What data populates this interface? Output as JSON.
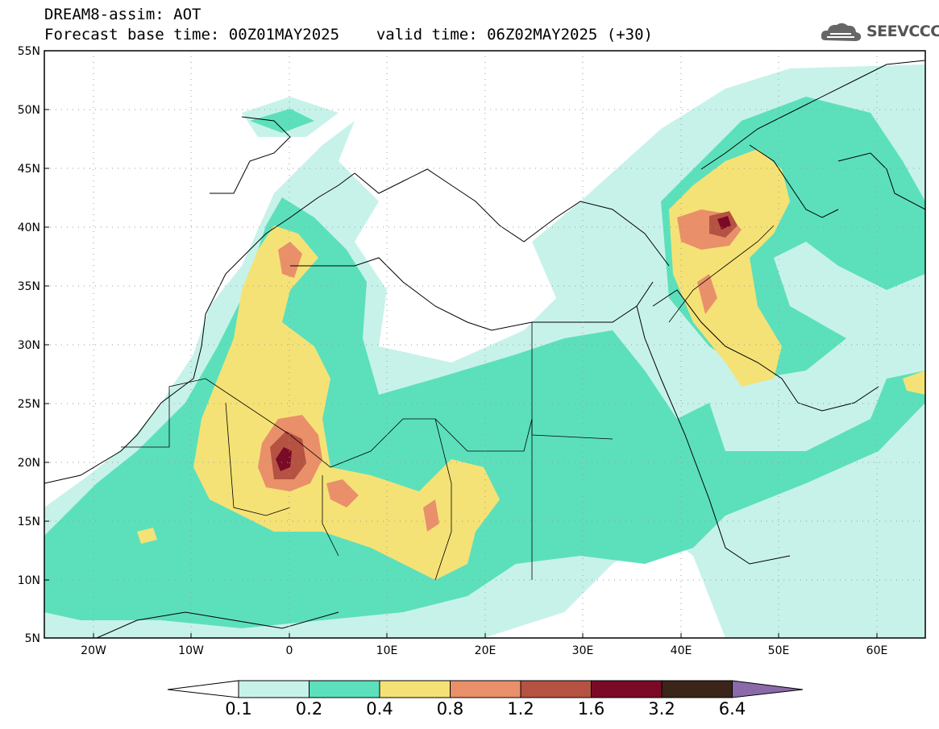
{
  "header": {
    "title": "DREAM8-assim: AOT",
    "base_time_label": "Forecast base time: 00Z01MAY2025",
    "valid_time_label": "valid time: 06Z02MAY2025 (+30)",
    "logo_text": "SEEVCCC"
  },
  "axes": {
    "lat_ticks": [
      "55N",
      "50N",
      "45N",
      "40N",
      "35N",
      "30N",
      "25N",
      "20N",
      "15N",
      "10N",
      "5N"
    ],
    "lon_ticks": [
      "20W",
      "10W",
      "0",
      "10E",
      "20E",
      "30E",
      "40E",
      "50E",
      "60E"
    ]
  },
  "colorbar": {
    "labels": [
      "0.1",
      "0.2",
      "0.4",
      "0.8",
      "1.2",
      "1.6",
      "3.2",
      "6.4"
    ],
    "colors": [
      "#c7f2ea",
      "#5ce0bc",
      "#f5e276",
      "#e9906a",
      "#b65242",
      "#7a0a26",
      "#3b2418",
      "#8a6aa8"
    ]
  },
  "legend_colors": {
    "land": "#ffffff",
    "frame": "#000000"
  }
}
